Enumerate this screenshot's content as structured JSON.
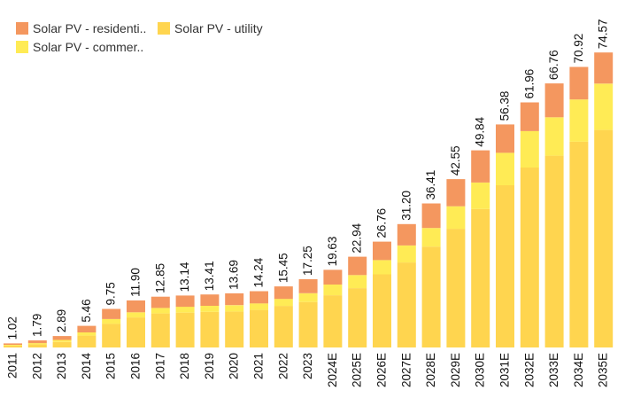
{
  "chart_data": {
    "type": "bar",
    "stacked": true,
    "categories": [
      "2011",
      "2012",
      "2013",
      "2014",
      "2015",
      "2016",
      "2017",
      "2018",
      "2019",
      "2020",
      "2021",
      "2022",
      "2023",
      "2024E",
      "2025E",
      "2026E",
      "2027E",
      "2028E",
      "2029E",
      "2030E",
      "2031E",
      "2032E",
      "2033E",
      "2034E",
      "2035E"
    ],
    "series": [
      {
        "name": "Solar PV - utility",
        "color": "#FFD54F",
        "values": [
          0.5,
          0.8,
          1.4,
          3.0,
          6.0,
          7.6,
          8.6,
          8.8,
          9.0,
          9.1,
          9.5,
          10.5,
          11.5,
          13.2,
          15.0,
          18.5,
          21.5,
          25.5,
          30.0,
          35.0,
          41.0,
          45.5,
          48.5,
          52.0,
          55.0
        ]
      },
      {
        "name": "Solar PV - commer..",
        "color": "#FFEB55",
        "values": [
          0.17,
          0.3,
          0.5,
          0.8,
          1.2,
          1.3,
          1.4,
          1.5,
          1.55,
          1.6,
          1.65,
          1.8,
          2.2,
          2.7,
          3.3,
          3.6,
          4.3,
          4.7,
          5.7,
          6.7,
          8.2,
          9.2,
          9.7,
          10.7,
          11.7
        ]
      },
      {
        "name": "Solar PV - residenti..",
        "color": "#F4975F",
        "values": [
          0.35,
          0.69,
          0.99,
          1.66,
          2.55,
          3.0,
          2.85,
          2.84,
          2.86,
          2.99,
          3.09,
          3.15,
          3.55,
          3.73,
          4.64,
          4.66,
          5.4,
          6.21,
          6.85,
          8.14,
          7.18,
          7.26,
          8.56,
          8.22,
          7.87
        ]
      }
    ],
    "totals": [
      "1.02",
      "1.79",
      "2.89",
      "5.46",
      "9.75",
      "11.90",
      "12.85",
      "13.14",
      "13.41",
      "13.69",
      "14.24",
      "15.45",
      "17.25",
      "19.63",
      "22.94",
      "26.76",
      "31.20",
      "36.41",
      "42.55",
      "49.84",
      "56.38",
      "61.96",
      "66.76",
      "70.92",
      "74.57"
    ],
    "ylim": [
      0,
      80
    ],
    "grid": false,
    "legend_position": "top-left"
  },
  "legend": {
    "items": [
      {
        "label": "Solar PV - residenti..",
        "color": "#F4975F"
      },
      {
        "label": "Solar PV - utility",
        "color": "#FFD54F"
      },
      {
        "label": "Solar PV - commer..",
        "color": "#FFEB55"
      }
    ]
  }
}
